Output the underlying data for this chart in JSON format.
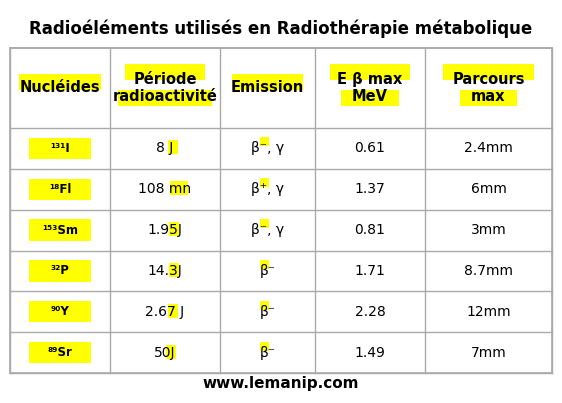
{
  "title": "Radioéléments utilisés en Radiothérapie métabolique",
  "watermark": "www.lemanip.com",
  "bg_color": "#ffffff",
  "yellow": "#ffff00",
  "gray": "#aaaaaa",
  "headers": [
    "Nucléides",
    "Période\nradioactivité",
    "Emission",
    "E β max\nMeV",
    "Parcours\nmax"
  ],
  "rows": [
    [
      "¹³¹I",
      "8 J",
      "β⁻, γ",
      "0.61",
      "2.4mm"
    ],
    [
      "¹⁸Fl",
      "108 mn",
      "β⁺, γ",
      "1.37",
      "6mm"
    ],
    [
      "¹⁵³Sm",
      "1.95J",
      "β⁻, γ",
      "0.81",
      "3mm"
    ],
    [
      "³²P",
      "14.3J",
      "β⁻",
      "1.71",
      "8.7mm"
    ],
    [
      "⁹⁰Y",
      "2.67 J",
      "β⁻",
      "2.28",
      "12mm"
    ],
    [
      "⁸⁹Sr",
      "50J",
      "β⁻",
      "1.49",
      "7mm"
    ]
  ],
  "title_fontsize": 12,
  "header_fontsize": 10.5,
  "cell_fontsize": 10,
  "nuclide_fontsize": 8.5,
  "watermark_fontsize": 11
}
